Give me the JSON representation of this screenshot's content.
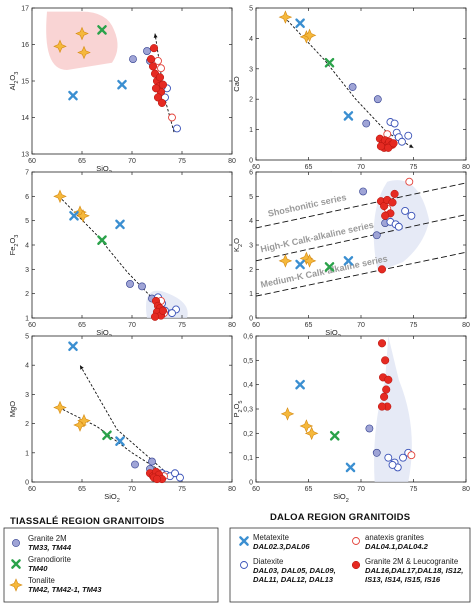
{
  "colors": {
    "granite_2m": "#9fa4d6",
    "granite_2m_stroke": "#2c3a8c",
    "granodiorite": "#2aa24a",
    "tonalite": "#f5b83c",
    "tonalite_stroke": "#d58a12",
    "metatexite": "#3b8fd1",
    "diatexite_stroke": "#3a52b8",
    "anatexis_stroke": "#e3423a",
    "leucogranite": "#e52a22"
  },
  "figure": {
    "left_region_title": "TIASSALÉ REGION GRANITOIDS",
    "right_region_title": "DALOA REGION GRANITOIDS"
  },
  "legend": {
    "left": [
      {
        "key": "granite_2m",
        "marker": "circle-filled",
        "label": "Granite 2M",
        "samples": "TM33, TM44"
      },
      {
        "key": "granodiorite",
        "marker": "cross",
        "label": "Granodiorite",
        "samples": "TM40"
      },
      {
        "key": "tonalite",
        "marker": "star",
        "label": "Tonalite",
        "samples": "TM42, TM42-1, TM43"
      }
    ],
    "right_col1": [
      {
        "key": "metatexite",
        "marker": "cross-blue",
        "label": "Metatexite",
        "samples": "DAL02.3,DAL06"
      },
      {
        "key": "diatexite",
        "marker": "circle-open-blue",
        "label": "Diatexite",
        "samples": "DAL03, DAL05, DAL09, DAL11, DAL12, DAL13"
      }
    ],
    "right_col2": [
      {
        "key": "anatexis",
        "marker": "circle-open-red",
        "label": "anatexis granites",
        "samples": "DAL04.1,DAL04.2"
      },
      {
        "key": "leucogranite",
        "marker": "circle-filled-red",
        "label": "Granite 2M & Leucogranite",
        "samples": "DAL16,DAL17,DAL18, IS12, IS13, IS14, IS15, IS16"
      }
    ]
  },
  "chart_data": [
    {
      "id": "al2o3",
      "type": "scatter",
      "xlabel": "SiO2",
      "ylabel": "Al2O3",
      "xlim": [
        60,
        80
      ],
      "ylim": [
        13,
        17
      ],
      "xticks": [
        60,
        65,
        70,
        75,
        80
      ],
      "yticks": [
        13,
        14,
        15,
        16,
        17
      ],
      "shade": "tonalite-field",
      "trend": [
        [
          74.2,
          13.6
        ],
        [
          73.2,
          14.6
        ],
        [
          72.8,
          15.4
        ],
        [
          72.3,
          16.3
        ]
      ],
      "series": [
        {
          "key": "tonalite",
          "points": [
            [
              62.8,
              15.95
            ],
            [
              65.0,
              16.3
            ],
            [
              65.2,
              15.78
            ]
          ]
        },
        {
          "key": "granodiorite",
          "points": [
            [
              67.0,
              16.4
            ]
          ]
        },
        {
          "key": "granite_2m",
          "points": [
            [
              70.1,
              15.6
            ],
            [
              71.5,
              15.82
            ],
            [
              71.8,
              15.55
            ]
          ]
        },
        {
          "key": "metatexite",
          "points": [
            [
              64.1,
              14.6
            ],
            [
              69.0,
              14.9
            ]
          ]
        },
        {
          "key": "diatexite",
          "points": [
            [
              73.5,
              14.8
            ],
            [
              73.0,
              14.85
            ],
            [
              73.3,
              14.55
            ],
            [
              74.5,
              13.7
            ]
          ]
        },
        {
          "key": "anatexis",
          "points": [
            [
              72.6,
              15.55
            ],
            [
              72.9,
              15.35
            ],
            [
              74.0,
              14.0
            ]
          ]
        },
        {
          "key": "leucogranite",
          "points": [
            [
              72.2,
              15.9
            ],
            [
              71.9,
              15.6
            ],
            [
              72.1,
              15.4
            ],
            [
              72.3,
              15.2
            ],
            [
              72.5,
              15.0
            ],
            [
              72.7,
              14.85
            ],
            [
              72.9,
              14.7
            ],
            [
              72.6,
              14.55
            ],
            [
              73.0,
              14.4
            ],
            [
              72.4,
              14.8
            ],
            [
              72.8,
              15.1
            ],
            [
              73.1,
              14.9
            ]
          ]
        }
      ]
    },
    {
      "id": "cao",
      "type": "scatter",
      "xlabel": "SiO2",
      "ylabel": "CaO",
      "xlim": [
        60,
        80
      ],
      "ylim": [
        0,
        5
      ],
      "xticks": [
        60,
        65,
        70,
        75,
        80
      ],
      "yticks": [
        0,
        1,
        2,
        3,
        4,
        5
      ],
      "shade": "",
      "trend": [
        [
          62.7,
          4.7
        ],
        [
          66.5,
          3.3
        ],
        [
          69.5,
          2.0
        ],
        [
          72.5,
          0.9
        ],
        [
          75.0,
          0.4
        ]
      ],
      "series": [
        {
          "key": "tonalite",
          "points": [
            [
              62.8,
              4.7
            ],
            [
              64.8,
              4.05
            ],
            [
              65.1,
              4.1
            ]
          ]
        },
        {
          "key": "granodiorite",
          "points": [
            [
              67.0,
              3.2
            ]
          ]
        },
        {
          "key": "granite_2m",
          "points": [
            [
              69.2,
              2.4
            ],
            [
              70.5,
              1.2
            ],
            [
              71.6,
              2.0
            ]
          ]
        },
        {
          "key": "metatexite",
          "points": [
            [
              64.2,
              4.5
            ],
            [
              68.8,
              1.45
            ]
          ]
        },
        {
          "key": "diatexite",
          "points": [
            [
              72.8,
              1.25
            ],
            [
              73.2,
              1.2
            ],
            [
              73.4,
              0.9
            ],
            [
              73.6,
              0.75
            ],
            [
              74.5,
              0.8
            ],
            [
              73.9,
              0.6
            ]
          ]
        },
        {
          "key": "anatexis",
          "points": [
            [
              72.5,
              0.85
            ],
            [
              73.0,
              0.5
            ]
          ]
        },
        {
          "key": "leucogranite",
          "points": [
            [
              71.8,
              0.7
            ],
            [
              72.1,
              0.55
            ],
            [
              72.3,
              0.65
            ],
            [
              72.5,
              0.5
            ],
            [
              72.7,
              0.6
            ],
            [
              72.9,
              0.5
            ],
            [
              72.2,
              0.4
            ],
            [
              72.6,
              0.4
            ],
            [
              73.1,
              0.55
            ],
            [
              71.9,
              0.45
            ]
          ]
        }
      ]
    },
    {
      "id": "fe2o3",
      "type": "scatter",
      "xlabel": "SiO2",
      "ylabel": "Fe2O3",
      "xlim": [
        60,
        80
      ],
      "ylim": [
        1,
        7
      ],
      "xticks": [
        60,
        65,
        70,
        75,
        80
      ],
      "yticks": [
        1,
        2,
        3,
        4,
        5,
        6,
        7
      ],
      "shade": "fe-field",
      "trend": [
        [
          62.7,
          6.0
        ],
        [
          66.5,
          4.4
        ],
        [
          69.5,
          2.9
        ],
        [
          72.3,
          1.7
        ],
        [
          74.3,
          1.2
        ]
      ],
      "series": [
        {
          "key": "tonalite",
          "points": [
            [
              62.8,
              6.0
            ],
            [
              64.8,
              5.35
            ],
            [
              65.1,
              5.2
            ]
          ]
        },
        {
          "key": "granodiorite",
          "points": [
            [
              67.0,
              4.2
            ]
          ]
        },
        {
          "key": "granite_2m",
          "points": [
            [
              69.8,
              2.4
            ],
            [
              71.0,
              2.3
            ],
            [
              72.0,
              1.8
            ]
          ]
        },
        {
          "key": "metatexite",
          "points": [
            [
              64.2,
              5.2
            ],
            [
              68.8,
              4.85
            ]
          ]
        },
        {
          "key": "diatexite",
          "points": [
            [
              72.6,
              1.85
            ],
            [
              73.0,
              1.6
            ],
            [
              73.3,
              1.3
            ],
            [
              74.4,
              1.35
            ],
            [
              74.0,
              1.2
            ]
          ]
        },
        {
          "key": "anatexis",
          "points": [
            [
              72.9,
              1.7
            ],
            [
              73.2,
              1.2
            ]
          ]
        },
        {
          "key": "leucogranite",
          "points": [
            [
              72.4,
              1.7
            ],
            [
              72.6,
              1.5
            ],
            [
              72.8,
              1.4
            ],
            [
              72.5,
              1.25
            ],
            [
              72.9,
              1.1
            ],
            [
              73.1,
              1.3
            ],
            [
              72.3,
              1.05
            ]
          ]
        }
      ]
    },
    {
      "id": "k2o",
      "type": "scatter",
      "xlabel": "SiO2",
      "ylabel": "K2O",
      "xlim": [
        60,
        80
      ],
      "ylim": [
        0,
        6
      ],
      "xticks": [
        60,
        65,
        70,
        75,
        80
      ],
      "yticks": [
        0,
        1,
        2,
        3,
        4,
        5,
        6
      ],
      "shade": "k-field",
      "lines": [
        {
          "label": "Shoshonitic series",
          "pts": [
            [
              60,
              3.7
            ],
            [
              80,
              5.55
            ]
          ]
        },
        {
          "label": "High-K Calk-alkaline series",
          "pts": [
            [
              60,
              2.35
            ],
            [
              80,
              4.25
            ]
          ]
        },
        {
          "label": "Medium-K Calk-alkaline series",
          "pts": [
            [
              60,
              0.9
            ],
            [
              80,
              2.7
            ]
          ]
        }
      ],
      "series": [
        {
          "key": "tonalite",
          "points": [
            [
              62.8,
              2.35
            ],
            [
              64.8,
              2.45
            ],
            [
              65.1,
              2.35
            ]
          ]
        },
        {
          "key": "granodiorite",
          "points": [
            [
              67.0,
              2.1
            ]
          ]
        },
        {
          "key": "granite_2m",
          "points": [
            [
              70.2,
              5.2
            ],
            [
              71.5,
              3.4
            ],
            [
              72.3,
              3.9
            ]
          ]
        },
        {
          "key": "metatexite",
          "points": [
            [
              64.2,
              2.2
            ],
            [
              68.8,
              2.35
            ]
          ]
        },
        {
          "key": "diatexite",
          "points": [
            [
              72.8,
              3.95
            ],
            [
              73.3,
              3.85
            ],
            [
              73.6,
              3.75
            ],
            [
              74.2,
              4.4
            ],
            [
              74.8,
              4.2
            ]
          ]
        },
        {
          "key": "anatexis",
          "points": [
            [
              74.6,
              5.6
            ],
            [
              72.5,
              4.5
            ]
          ]
        },
        {
          "key": "leucogranite",
          "points": [
            [
              71.9,
              4.8
            ],
            [
              72.2,
              4.6
            ],
            [
              72.5,
              4.85
            ],
            [
              72.8,
              4.3
            ],
            [
              73.0,
              4.75
            ],
            [
              72.3,
              4.2
            ],
            [
              73.2,
              5.1
            ],
            [
              72.0,
              2.0
            ]
          ]
        }
      ]
    },
    {
      "id": "mgo",
      "type": "scatter",
      "xlabel": "SiO2",
      "ylabel": "MgO",
      "xlim": [
        60,
        80
      ],
      "ylim": [
        0,
        5
      ],
      "xticks": [
        60,
        65,
        70,
        75,
        80
      ],
      "yticks": [
        0,
        1,
        2,
        3,
        4,
        5
      ],
      "shade": "",
      "trends": [
        [
          [
            73.5,
            0.3
          ],
          [
            68.5,
            1.8
          ],
          [
            64.8,
            4.0
          ]
        ],
        [
          [
            62.7,
            2.55
          ],
          [
            66.5,
            1.9
          ],
          [
            70.0,
            1.0
          ],
          [
            73.0,
            0.35
          ],
          [
            75.0,
            0.2
          ]
        ]
      ],
      "series": [
        {
          "key": "tonalite",
          "points": [
            [
              62.8,
              2.55
            ],
            [
              64.8,
              1.95
            ],
            [
              65.2,
              2.1
            ]
          ]
        },
        {
          "key": "granodiorite",
          "points": [
            [
              67.5,
              1.6
            ]
          ]
        },
        {
          "key": "granite_2m",
          "points": [
            [
              70.3,
              0.6
            ],
            [
              71.8,
              0.45
            ],
            [
              72.0,
              0.7
            ]
          ]
        },
        {
          "key": "metatexite",
          "points": [
            [
              64.1,
              4.65
            ],
            [
              68.8,
              1.4
            ]
          ]
        },
        {
          "key": "diatexite",
          "points": [
            [
              73.0,
              0.3
            ],
            [
              73.4,
              0.25
            ],
            [
              73.8,
              0.2
            ],
            [
              74.3,
              0.3
            ],
            [
              74.8,
              0.15
            ]
          ]
        },
        {
          "key": "anatexis",
          "points": [
            [
              72.6,
              0.3
            ],
            [
              73.2,
              0.2
            ]
          ]
        },
        {
          "key": "leucogranite",
          "points": [
            [
              71.8,
              0.3
            ],
            [
              72.1,
              0.2
            ],
            [
              72.4,
              0.35
            ],
            [
              72.7,
              0.25
            ],
            [
              72.2,
              0.15
            ],
            [
              73.0,
              0.1
            ],
            [
              72.5,
              0.1
            ]
          ]
        }
      ]
    },
    {
      "id": "p2o5",
      "type": "scatter",
      "xlabel": "SiO2",
      "ylabel": "P2O5",
      "xlim": [
        60,
        80
      ],
      "ylim": [
        0,
        0.6
      ],
      "xticks": [
        60,
        65,
        70,
        75,
        80
      ],
      "yticks": [
        0,
        0.1,
        0.2,
        0.3,
        0.4,
        0.5,
        0.6
      ],
      "ytick_labels": [
        "0",
        "0,1",
        "0,2",
        "0,3",
        "0,4",
        "0,5",
        "0,6"
      ],
      "shade": "p-field",
      "series": [
        {
          "key": "tonalite",
          "points": [
            [
              63.0,
              0.28
            ],
            [
              64.8,
              0.23
            ],
            [
              65.3,
              0.2
            ]
          ]
        },
        {
          "key": "granodiorite",
          "points": [
            [
              67.5,
              0.19
            ]
          ]
        },
        {
          "key": "granite_2m",
          "points": [
            [
              70.8,
              0.22
            ],
            [
              71.5,
              0.12
            ]
          ]
        },
        {
          "key": "metatexite",
          "points": [
            [
              64.2,
              0.4
            ],
            [
              69.0,
              0.06
            ]
          ]
        },
        {
          "key": "diatexite",
          "points": [
            [
              72.6,
              0.1
            ],
            [
              73.2,
              0.08
            ],
            [
              73.5,
              0.06
            ],
            [
              74.0,
              0.1
            ],
            [
              74.5,
              0.12
            ],
            [
              73.0,
              0.07
            ]
          ]
        },
        {
          "key": "anatexis",
          "points": [
            [
              74.8,
              0.11
            ]
          ]
        },
        {
          "key": "leucogranite",
          "points": [
            [
              72.0,
              0.57
            ],
            [
              72.3,
              0.5
            ],
            [
              72.1,
              0.43
            ],
            [
              72.6,
              0.42
            ],
            [
              72.4,
              0.38
            ],
            [
              72.2,
              0.35
            ],
            [
              72.5,
              0.31
            ],
            [
              72.0,
              0.31
            ]
          ]
        }
      ]
    }
  ]
}
